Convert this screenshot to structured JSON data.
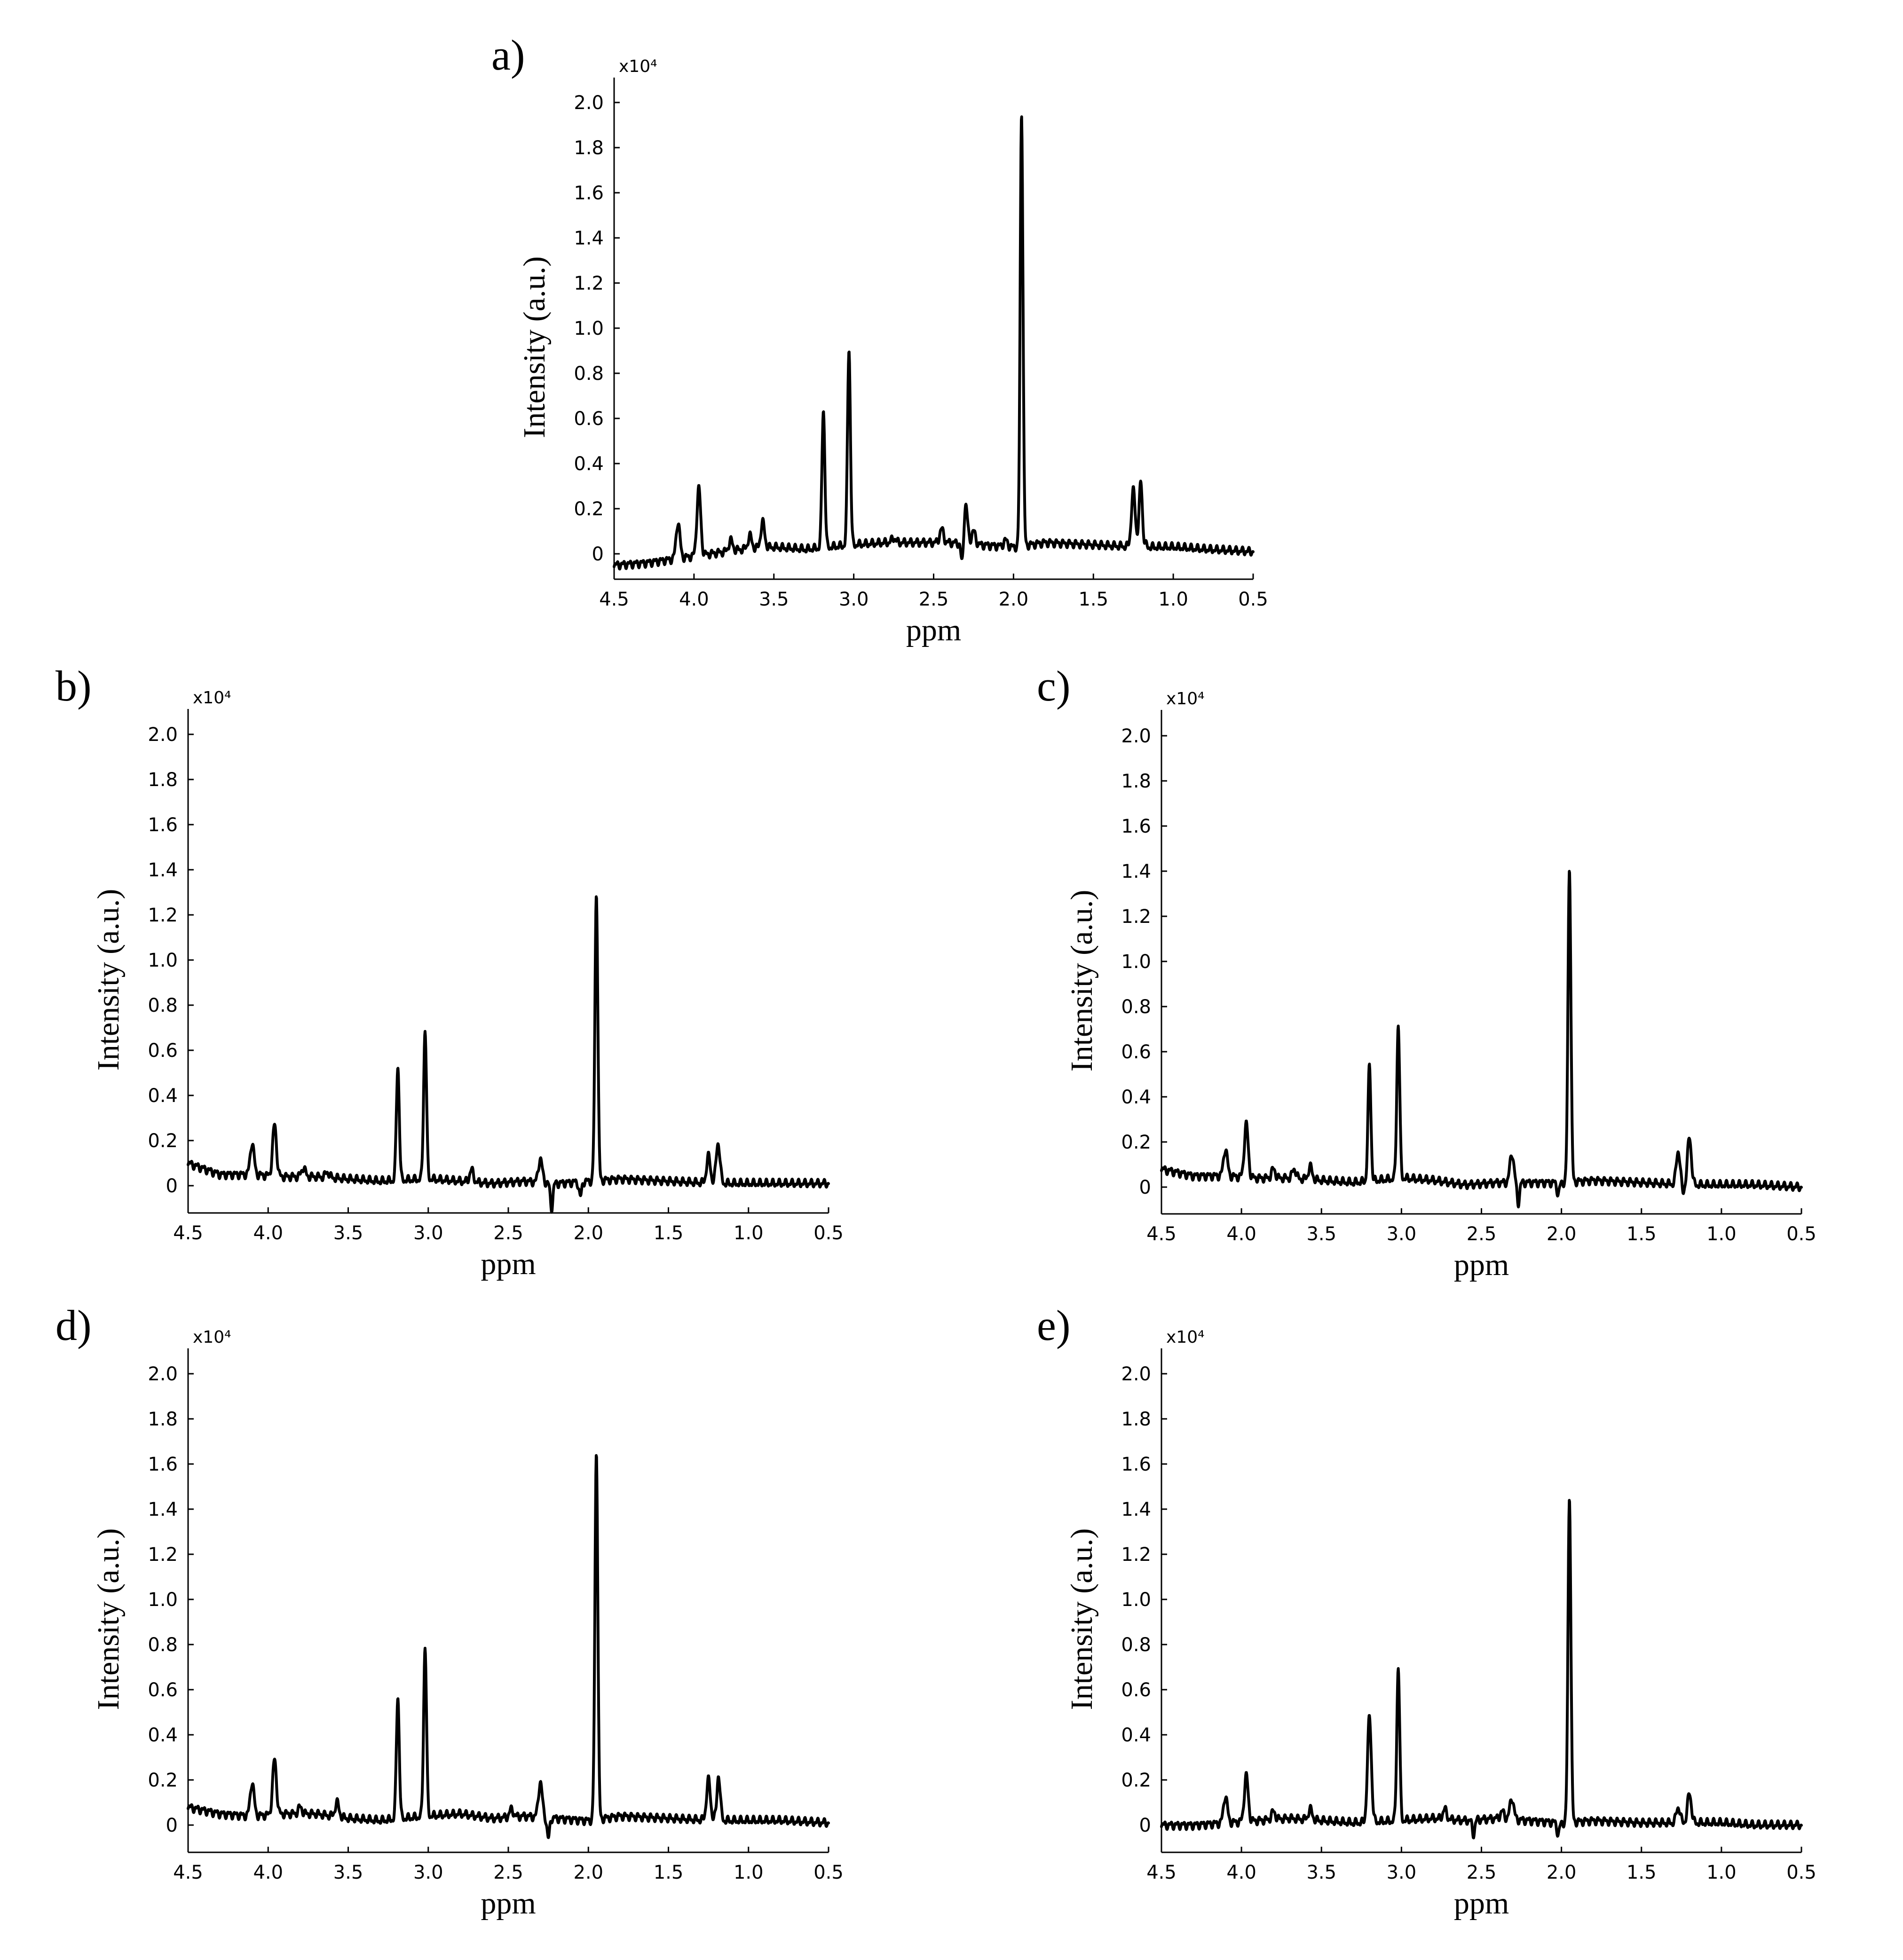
{
  "figure": {
    "panels": [
      {
        "letter": "a)",
        "multiplier": "x10⁴",
        "xlabel": "ppm",
        "ylabel": "Intensity (a.u.)"
      },
      {
        "letter": "b)",
        "multiplier": "x10⁴",
        "xlabel": "ppm",
        "ylabel": "Intensity (a.u.)"
      },
      {
        "letter": "c)",
        "multiplier": "x10⁴",
        "xlabel": "ppm",
        "ylabel": "Intensity (a.u.)"
      },
      {
        "letter": "d)",
        "multiplier": "x10⁴",
        "xlabel": "ppm",
        "ylabel": "Intensity (a.u.)"
      },
      {
        "letter": "e)",
        "multiplier": "x10⁴",
        "xlabel": "ppm",
        "ylabel": "Intensity (a.u.)"
      }
    ]
  },
  "chart_data": [
    {
      "type": "line",
      "panel": "a)",
      "xlabel": "ppm",
      "ylabel": "Intensity (a.u.)",
      "y_multiplier": "x10⁴",
      "xlim": [
        4.5,
        0.5
      ],
      "ylim": [
        -0.1,
        2.1
      ],
      "x_reversed": true,
      "xticks": [
        "4.5",
        "4.0",
        "3.5",
        "3.0",
        "2.5",
        "2.0",
        "1.5",
        "1.0",
        "0.5"
      ],
      "yticks": [
        "0",
        "0.2",
        "0.4",
        "0.6",
        "0.8",
        "1.0",
        "1.2",
        "1.4",
        "1.6",
        "1.8",
        "2.0"
      ],
      "color": "#000000",
      "baseline": [
        [
          4.5,
          -0.05
        ],
        [
          4.3,
          -0.04
        ],
        [
          4.1,
          -0.02
        ],
        [
          3.9,
          0.0
        ],
        [
          3.7,
          0.02
        ],
        [
          3.5,
          0.03
        ],
        [
          3.3,
          0.02
        ],
        [
          3.0,
          0.04
        ],
        [
          2.8,
          0.05
        ],
        [
          2.6,
          0.05
        ],
        [
          2.4,
          0.05
        ],
        [
          2.2,
          0.04
        ],
        [
          2.0,
          0.03
        ],
        [
          1.8,
          0.05
        ],
        [
          1.5,
          0.04
        ],
        [
          1.2,
          0.03
        ],
        [
          1.0,
          0.03
        ],
        [
          0.8,
          0.02
        ],
        [
          0.5,
          0.01
        ]
      ],
      "peaks": [
        {
          "x": 4.1,
          "y": 0.14
        },
        {
          "x": 3.97,
          "y": 0.29
        },
        {
          "x": 3.77,
          "y": 0.06
        },
        {
          "x": 3.65,
          "y": 0.08
        },
        {
          "x": 3.57,
          "y": 0.14
        },
        {
          "x": 3.19,
          "y": 0.64
        },
        {
          "x": 3.03,
          "y": 0.91
        },
        {
          "x": 2.75,
          "y": 0.07
        },
        {
          "x": 2.45,
          "y": 0.11
        },
        {
          "x": 2.3,
          "y": 0.22
        },
        {
          "x": 2.25,
          "y": 0.1
        },
        {
          "x": 2.05,
          "y": 0.06
        },
        {
          "x": 1.95,
          "y": 2.02
        },
        {
          "x": 1.25,
          "y": 0.28
        },
        {
          "x": 1.2,
          "y": 0.36
        }
      ],
      "dips": [
        {
          "x": 2.32,
          "y": -0.07
        },
        {
          "x": 1.96,
          "y": -0.1
        },
        {
          "x": 1.19,
          "y": -0.09
        }
      ]
    },
    {
      "type": "line",
      "panel": "b)",
      "xlabel": "ppm",
      "ylabel": "Intensity (a.u.)",
      "y_multiplier": "x10⁴",
      "xlim": [
        4.5,
        0.5
      ],
      "ylim": [
        -0.12,
        2.1
      ],
      "x_reversed": true,
      "xticks": [
        "4.5",
        "4.0",
        "3.5",
        "3.0",
        "2.5",
        "2.0",
        "1.5",
        "1.0",
        "0.5"
      ],
      "yticks": [
        "0",
        "0.2",
        "0.4",
        "0.6",
        "0.8",
        "1.0",
        "1.2",
        "1.4",
        "1.6",
        "1.8",
        "2.0"
      ],
      "color": "#000000",
      "baseline": [
        [
          4.5,
          0.1
        ],
        [
          4.3,
          0.05
        ],
        [
          4.1,
          0.05
        ],
        [
          3.9,
          0.04
        ],
        [
          3.7,
          0.04
        ],
        [
          3.5,
          0.03
        ],
        [
          3.3,
          0.02
        ],
        [
          3.0,
          0.03
        ],
        [
          2.8,
          0.02
        ],
        [
          2.6,
          0.01
        ],
        [
          2.4,
          0.02
        ],
        [
          2.2,
          0.01
        ],
        [
          2.0,
          0.02
        ],
        [
          1.8,
          0.03
        ],
        [
          1.5,
          0.02
        ],
        [
          1.2,
          0.01
        ],
        [
          1.0,
          0.01
        ],
        [
          0.8,
          0.01
        ],
        [
          0.5,
          0.01
        ]
      ],
      "peaks": [
        {
          "x": 4.1,
          "y": 0.19
        },
        {
          "x": 3.96,
          "y": 0.27
        },
        {
          "x": 3.78,
          "y": 0.08
        },
        {
          "x": 3.63,
          "y": 0.06
        },
        {
          "x": 3.19,
          "y": 0.53
        },
        {
          "x": 3.02,
          "y": 0.69
        },
        {
          "x": 2.73,
          "y": 0.07
        },
        {
          "x": 2.3,
          "y": 0.12
        },
        {
          "x": 1.95,
          "y": 1.3
        },
        {
          "x": 1.25,
          "y": 0.13
        },
        {
          "x": 1.19,
          "y": 0.19
        }
      ],
      "dips": [
        {
          "x": 2.23,
          "y": -0.1
        },
        {
          "x": 2.05,
          "y": -0.05
        }
      ]
    },
    {
      "type": "line",
      "panel": "c)",
      "xlabel": "ppm",
      "ylabel": "Intensity (a.u.)",
      "y_multiplier": "x10⁴",
      "xlim": [
        4.5,
        0.5
      ],
      "ylim": [
        -0.12,
        2.1
      ],
      "x_reversed": true,
      "xticks": [
        "4.5",
        "4.0",
        "3.5",
        "3.0",
        "2.5",
        "2.0",
        "1.5",
        "1.0",
        "0.5"
      ],
      "yticks": [
        "0",
        "0.2",
        "0.4",
        "0.6",
        "0.8",
        "1.0",
        "1.2",
        "1.4",
        "1.6",
        "1.8",
        "2.0"
      ],
      "color": "#000000",
      "baseline": [
        [
          4.5,
          0.08
        ],
        [
          4.3,
          0.05
        ],
        [
          4.1,
          0.05
        ],
        [
          3.9,
          0.04
        ],
        [
          3.7,
          0.04
        ],
        [
          3.5,
          0.03
        ],
        [
          3.3,
          0.02
        ],
        [
          3.0,
          0.04
        ],
        [
          2.8,
          0.03
        ],
        [
          2.6,
          0.01
        ],
        [
          2.4,
          0.02
        ],
        [
          2.2,
          0.02
        ],
        [
          2.0,
          0.02
        ],
        [
          1.8,
          0.03
        ],
        [
          1.5,
          0.02
        ],
        [
          1.2,
          0.01
        ],
        [
          1.0,
          0.01
        ],
        [
          0.8,
          0.01
        ],
        [
          0.5,
          0.0
        ]
      ],
      "peaks": [
        {
          "x": 4.1,
          "y": 0.17
        },
        {
          "x": 3.97,
          "y": 0.28
        },
        {
          "x": 3.8,
          "y": 0.08
        },
        {
          "x": 3.67,
          "y": 0.08
        },
        {
          "x": 3.57,
          "y": 0.09
        },
        {
          "x": 3.2,
          "y": 0.54
        },
        {
          "x": 3.02,
          "y": 0.72
        },
        {
          "x": 2.31,
          "y": 0.15
        },
        {
          "x": 1.95,
          "y": 1.42
        },
        {
          "x": 1.27,
          "y": 0.16
        },
        {
          "x": 1.2,
          "y": 0.22
        }
      ],
      "dips": [
        {
          "x": 2.27,
          "y": -0.07
        },
        {
          "x": 2.02,
          "y": -0.03
        },
        {
          "x": 1.24,
          "y": -0.03
        }
      ]
    },
    {
      "type": "line",
      "panel": "d)",
      "xlabel": "ppm",
      "ylabel": "Intensity (a.u.)",
      "y_multiplier": "x10⁴",
      "xlim": [
        4.5,
        0.5
      ],
      "ylim": [
        -0.12,
        2.1
      ],
      "x_reversed": true,
      "xticks": [
        "4.5",
        "4.0",
        "3.5",
        "3.0",
        "2.5",
        "2.0",
        "1.5",
        "1.0",
        "0.5"
      ],
      "yticks": [
        "0",
        "0.2",
        "0.4",
        "0.6",
        "0.8",
        "1.0",
        "1.2",
        "1.4",
        "1.6",
        "1.8",
        "2.0"
      ],
      "color": "#000000",
      "baseline": [
        [
          4.5,
          0.08
        ],
        [
          4.3,
          0.05
        ],
        [
          4.1,
          0.04
        ],
        [
          3.9,
          0.05
        ],
        [
          3.7,
          0.05
        ],
        [
          3.5,
          0.03
        ],
        [
          3.3,
          0.02
        ],
        [
          3.0,
          0.04
        ],
        [
          2.8,
          0.05
        ],
        [
          2.6,
          0.03
        ],
        [
          2.4,
          0.04
        ],
        [
          2.2,
          0.03
        ],
        [
          2.0,
          0.02
        ],
        [
          1.8,
          0.04
        ],
        [
          1.5,
          0.03
        ],
        [
          1.2,
          0.02
        ],
        [
          1.0,
          0.02
        ],
        [
          0.8,
          0.02
        ],
        [
          0.5,
          0.01
        ]
      ],
      "peaks": [
        {
          "x": 4.1,
          "y": 0.19
        },
        {
          "x": 3.96,
          "y": 0.29
        },
        {
          "x": 3.8,
          "y": 0.08
        },
        {
          "x": 3.57,
          "y": 0.1
        },
        {
          "x": 3.19,
          "y": 0.57
        },
        {
          "x": 3.02,
          "y": 0.79
        },
        {
          "x": 2.48,
          "y": 0.07
        },
        {
          "x": 2.3,
          "y": 0.19
        },
        {
          "x": 1.95,
          "y": 1.66
        },
        {
          "x": 1.25,
          "y": 0.2
        },
        {
          "x": 1.19,
          "y": 0.25
        }
      ],
      "dips": [
        {
          "x": 2.25,
          "y": -0.06
        },
        {
          "x": 1.2,
          "y": -0.06
        }
      ]
    },
    {
      "type": "line",
      "panel": "e)",
      "xlabel": "ppm",
      "ylabel": "Intensity (a.u.)",
      "y_multiplier": "x10⁴",
      "xlim": [
        4.5,
        0.5
      ],
      "ylim": [
        -0.12,
        2.1
      ],
      "x_reversed": true,
      "xticks": [
        "4.5",
        "4.0",
        "3.5",
        "3.0",
        "2.5",
        "2.0",
        "1.5",
        "1.0",
        "0.5"
      ],
      "yticks": [
        "0",
        "0.2",
        "0.4",
        "0.6",
        "0.8",
        "1.0",
        "1.2",
        "1.4",
        "1.6",
        "1.8",
        "2.0"
      ],
      "color": "#000000",
      "baseline": [
        [
          4.5,
          0.0
        ],
        [
          4.3,
          0.0
        ],
        [
          4.1,
          0.01
        ],
        [
          3.9,
          0.02
        ],
        [
          3.7,
          0.03
        ],
        [
          3.5,
          0.02
        ],
        [
          3.3,
          0.01
        ],
        [
          3.0,
          0.02
        ],
        [
          2.8,
          0.03
        ],
        [
          2.6,
          0.02
        ],
        [
          2.4,
          0.03
        ],
        [
          2.2,
          0.02
        ],
        [
          2.0,
          0.01
        ],
        [
          1.8,
          0.02
        ],
        [
          1.5,
          0.01
        ],
        [
          1.2,
          0.01
        ],
        [
          1.0,
          0.01
        ],
        [
          0.8,
          0.0
        ],
        [
          0.5,
          0.0
        ]
      ],
      "peaks": [
        {
          "x": 4.1,
          "y": 0.13
        },
        {
          "x": 3.97,
          "y": 0.22
        },
        {
          "x": 3.8,
          "y": 0.06
        },
        {
          "x": 3.57,
          "y": 0.07
        },
        {
          "x": 3.2,
          "y": 0.48
        },
        {
          "x": 3.02,
          "y": 0.7
        },
        {
          "x": 2.73,
          "y": 0.07
        },
        {
          "x": 2.37,
          "y": 0.06
        },
        {
          "x": 2.31,
          "y": 0.12
        },
        {
          "x": 1.95,
          "y": 1.46
        },
        {
          "x": 1.27,
          "y": 0.08
        },
        {
          "x": 1.2,
          "y": 0.14
        }
      ],
      "dips": [
        {
          "x": 2.55,
          "y": -0.04
        },
        {
          "x": 2.02,
          "y": -0.04
        }
      ]
    }
  ]
}
